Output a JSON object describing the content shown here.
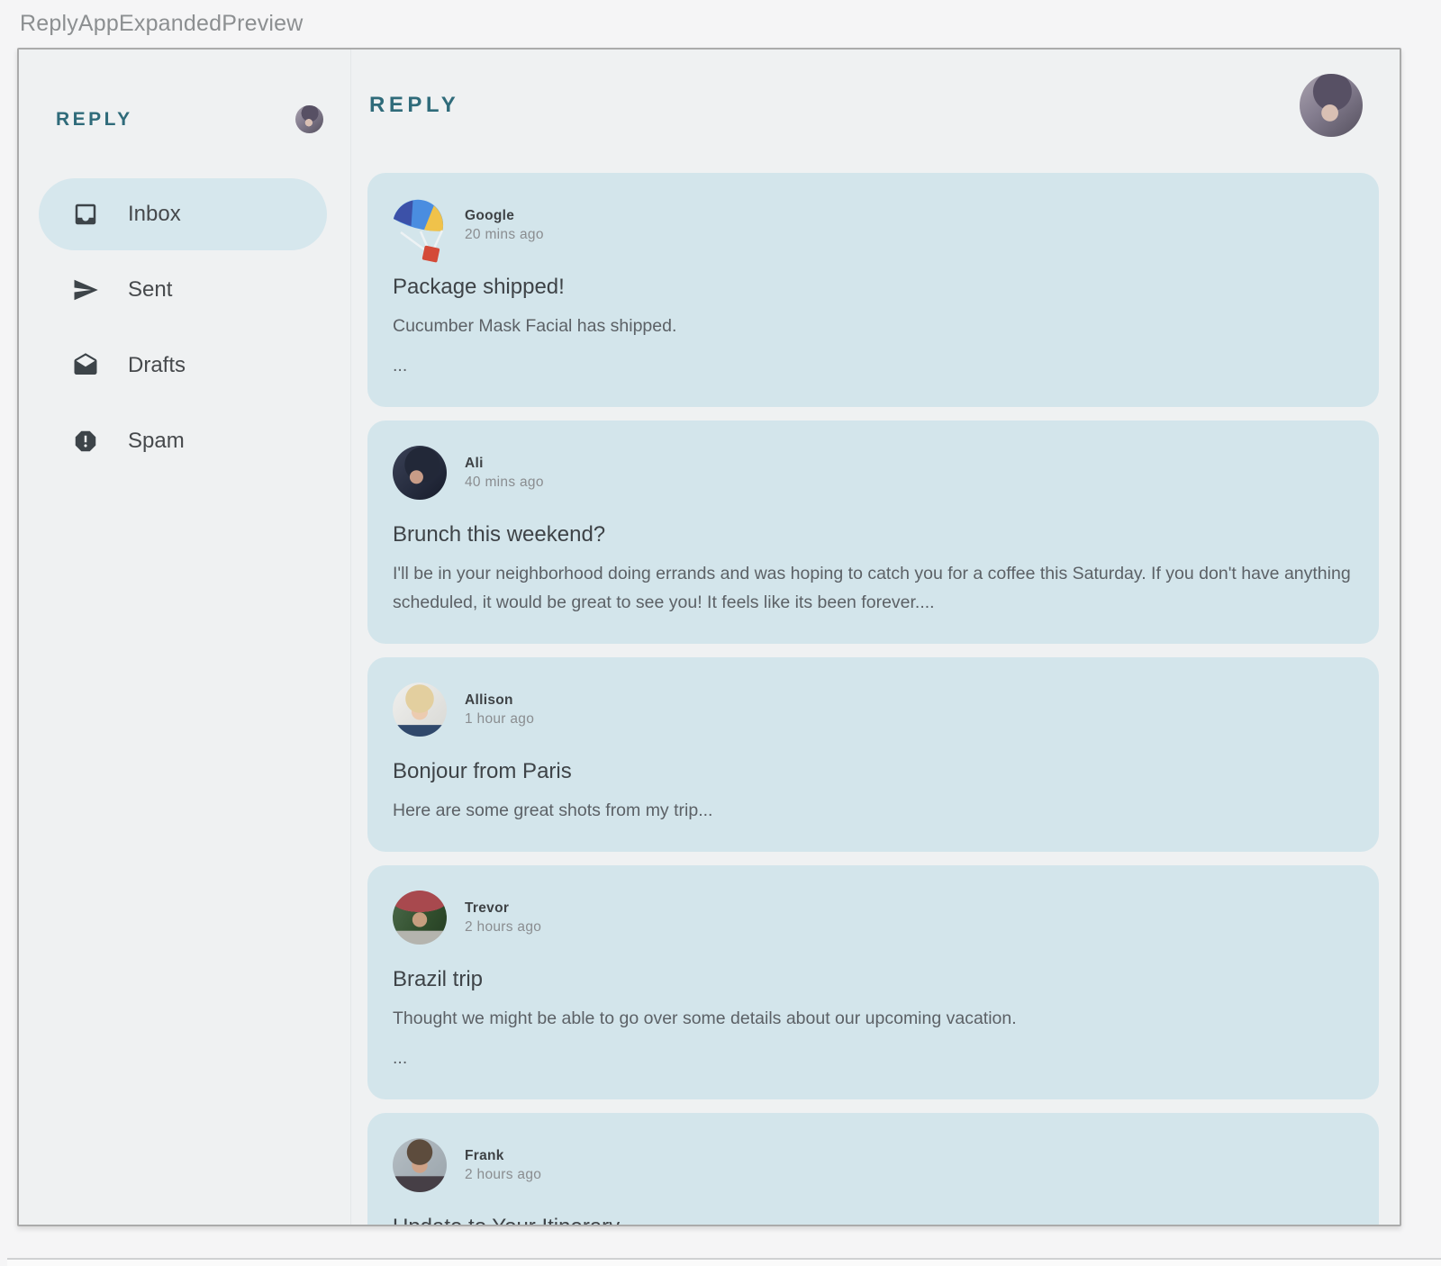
{
  "preview": {
    "title": "ReplyAppExpandedPreview"
  },
  "app": {
    "sidebar": {
      "logo": "REPLY",
      "nav": [
        {
          "label": "Inbox",
          "icon": "inbox-icon",
          "selected": true
        },
        {
          "label": "Sent",
          "icon": "send-icon",
          "selected": false
        },
        {
          "label": "Drafts",
          "icon": "drafts-icon",
          "selected": false
        },
        {
          "label": "Spam",
          "icon": "report-icon",
          "selected": false
        }
      ]
    },
    "header": {
      "title": "REPLY"
    },
    "emails": [
      {
        "sender": "Google",
        "time": "20 mins ago",
        "subject": "Package shipped!",
        "body_lines": [
          "Cucumber Mask Facial has shipped.",
          "..."
        ],
        "avatar": "google-parachute-logo"
      },
      {
        "sender": "Ali",
        "time": "40 mins ago",
        "subject": "Brunch this weekend?",
        "body_lines": [
          "I'll be in your neighborhood doing errands and was hoping to catch you for a coffee this Saturday. If you don't have anything scheduled, it would be great to see you! It feels like its been forever...."
        ],
        "avatar": "ali-photo"
      },
      {
        "sender": "Allison",
        "time": "1 hour ago",
        "subject": "Bonjour from Paris",
        "body_lines": [
          "Here are some great shots from my trip..."
        ],
        "avatar": "allison-photo"
      },
      {
        "sender": "Trevor",
        "time": "2 hours ago",
        "subject": "Brazil trip",
        "body_lines": [
          "Thought we might be able to go over some details about our upcoming vacation.",
          "..."
        ],
        "avatar": "trevor-photo"
      },
      {
        "sender": "Frank",
        "time": "2 hours ago",
        "subject": "Update to Your Itinerary",
        "body_lines": [],
        "avatar": "frank-photo"
      }
    ],
    "colors": {
      "accent_teal": "#2f6b7a",
      "card_bg": "#d3e5eb",
      "selected_nav_bg": "#d6e7ed",
      "panel_bg": "#eff1f2"
    }
  }
}
